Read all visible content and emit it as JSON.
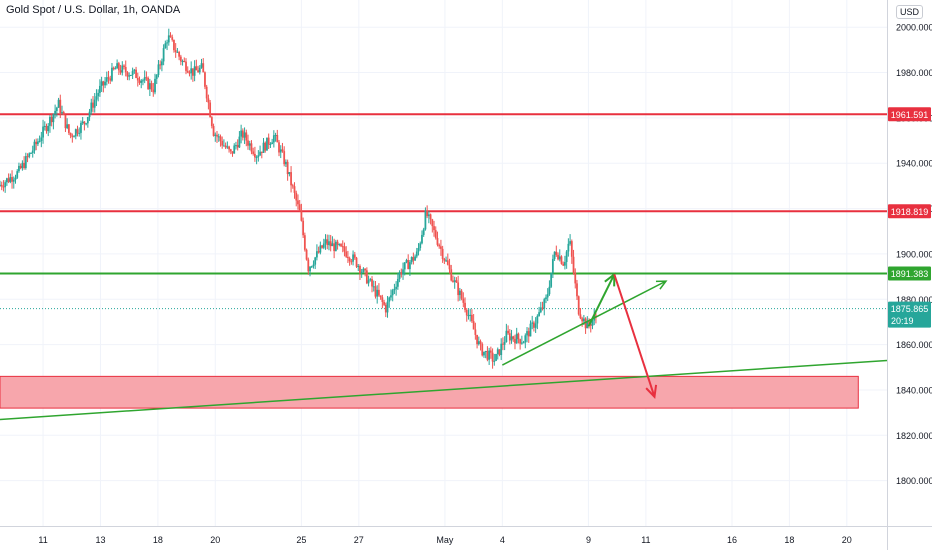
{
  "chart_title": "Gold Spot / U.S. Dollar, 1h, OANDA",
  "currency_button": "USD",
  "colors": {
    "up": "#26a69a",
    "down": "#ef5350",
    "resistance": "#e8303f",
    "support_green": "#2fa52f",
    "zone_fill": "#f7a1a8",
    "label_last": "#26a69a"
  },
  "chart_data": {
    "type": "candlestick",
    "instrument": "Gold Spot / U.S. Dollar",
    "timeframe": "1h",
    "source": "OANDA",
    "ylim": [
      1780,
      2012
    ],
    "yticks": [
      1800,
      1820,
      1840,
      1860,
      1880,
      1900,
      1920,
      1940,
      1960,
      1980,
      2000
    ],
    "ytick_labels": [
      "1800.000",
      "1820.000",
      "1840.000",
      "1860.000",
      "1880.000",
      "1900.000",
      "1920.000",
      "1940.000",
      "1960.000",
      "1980.000",
      "2000.000"
    ],
    "xticks": [
      {
        "label": "11",
        "day": 11
      },
      {
        "label": "13",
        "day": 13
      },
      {
        "label": "18",
        "day": 15
      },
      {
        "label": "20",
        "day": 17
      },
      {
        "label": "25",
        "day": 20
      },
      {
        "label": "27",
        "day": 22
      },
      {
        "label": "May",
        "day": 25
      },
      {
        "label": "4",
        "day": 27
      },
      {
        "label": "9",
        "day": 30
      },
      {
        "label": "11",
        "day": 32
      },
      {
        "label": "16",
        "day": 35
      },
      {
        "label": "18",
        "day": 37
      },
      {
        "label": "20",
        "day": 39
      }
    ],
    "xlim_days": [
      9.5,
      40.4
    ],
    "price_path": [
      [
        9.5,
        1930
      ],
      [
        10.2,
        1936
      ],
      [
        10.8,
        1948
      ],
      [
        11.6,
        1966
      ],
      [
        12.0,
        1952
      ],
      [
        12.5,
        1958
      ],
      [
        13.0,
        1972
      ],
      [
        13.6,
        1982
      ],
      [
        14.3,
        1979
      ],
      [
        14.9,
        1973
      ],
      [
        15.4,
        1996
      ],
      [
        15.9,
        1985
      ],
      [
        16.3,
        1980
      ],
      [
        16.6,
        1982
      ],
      [
        17.0,
        1954
      ],
      [
        17.6,
        1944
      ],
      [
        18.0,
        1953
      ],
      [
        18.5,
        1944
      ],
      [
        19.1,
        1952
      ],
      [
        19.5,
        1940
      ],
      [
        20.0,
        1918
      ],
      [
        20.3,
        1894
      ],
      [
        20.9,
        1905
      ],
      [
        21.6,
        1901
      ],
      [
        22.0,
        1896
      ],
      [
        22.5,
        1886
      ],
      [
        23.0,
        1876
      ],
      [
        23.5,
        1892
      ],
      [
        24.1,
        1900
      ],
      [
        24.4,
        1918
      ],
      [
        24.8,
        1906
      ],
      [
        25.3,
        1890
      ],
      [
        25.8,
        1876
      ],
      [
        26.3,
        1858
      ],
      [
        26.8,
        1853
      ],
      [
        27.2,
        1864
      ],
      [
        27.8,
        1862
      ],
      [
        28.2,
        1870
      ],
      [
        28.6,
        1880
      ],
      [
        28.9,
        1902
      ],
      [
        29.2,
        1896
      ],
      [
        29.4,
        1906
      ],
      [
        29.7,
        1876
      ],
      [
        30.0,
        1868
      ],
      [
        30.3,
        1872
      ]
    ],
    "last_day": 30.3,
    "horizontal_levels": [
      {
        "name": "resistance",
        "price": 1961.591,
        "label": "1961.591",
        "color": "#e8303f"
      },
      {
        "name": "resistance",
        "price": 1918.819,
        "label": "1918.819",
        "color": "#e8303f"
      },
      {
        "name": "support",
        "price": 1891.383,
        "label": "1891.383",
        "color": "#2fa52f"
      }
    ],
    "last_price": {
      "price": 1875.865,
      "label": "1875.865",
      "countdown": "20:19"
    },
    "zone": {
      "price_top": 1846,
      "price_bottom": 1832,
      "day_start": 9.5,
      "day_end": 39.4
    },
    "trendlines": [
      {
        "name": "long-trendline",
        "from": {
          "day": 9.5,
          "price": 1827
        },
        "to": {
          "day": 40.4,
          "price": 1853
        },
        "color": "#2fa52f"
      },
      {
        "name": "rising-trendline",
        "from": {
          "day": 27.0,
          "price": 1851
        },
        "to": {
          "day": 32.7,
          "price": 1888
        },
        "color": "#2fa52f"
      }
    ],
    "arrows": [
      {
        "name": "green-arrow-up",
        "from": {
          "day": 30.0,
          "price": 1868
        },
        "to": {
          "day": 30.9,
          "price": 1891
        },
        "color": "#2fa52f"
      },
      {
        "name": "red-arrow-down",
        "from": {
          "day": 30.9,
          "price": 1891
        },
        "to": {
          "day": 32.3,
          "price": 1837
        },
        "color": "#e8303f"
      }
    ]
  }
}
